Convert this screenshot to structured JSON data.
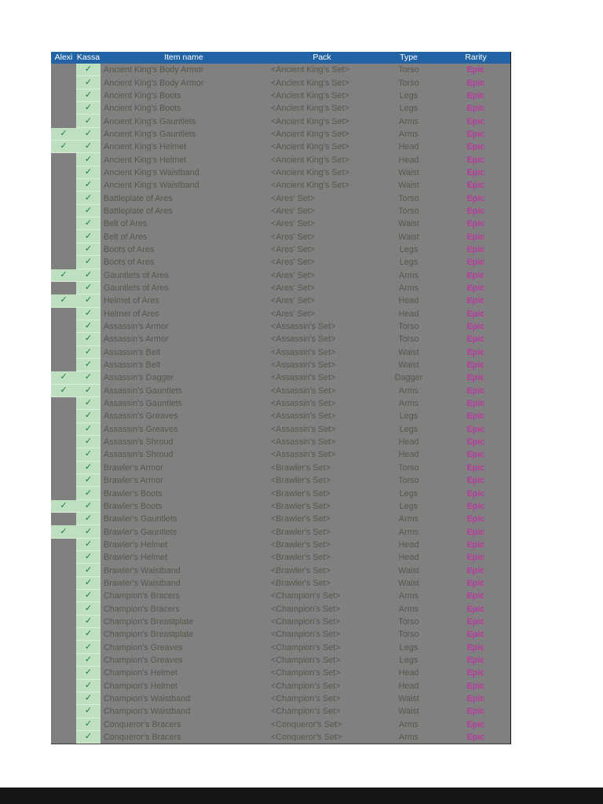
{
  "table": {
    "check_glyph": "✓",
    "colors": {
      "header_bg": "#2163a5",
      "header_text": "#ffffff",
      "row_bg": "#808080",
      "text": "#57564b",
      "check_bg": "#bfe0c0",
      "check_color": "#1e7a34",
      "epic": "#b8399e",
      "bottom_bar": "#161616"
    },
    "header": {
      "columns": [
        "Alexi",
        "Kassa",
        "Item name",
        "Pack",
        "Type",
        "Rarity"
      ]
    },
    "rows": [
      {
        "alexi": false,
        "kassa": true,
        "item": "Ancient King's Body Armor",
        "pack": "<Ancient King's Set>",
        "type": "Torso",
        "rarity": "Epic"
      },
      {
        "alexi": false,
        "kassa": true,
        "item": "Ancient King's Body Armor",
        "pack": "<Ancient King's Set>",
        "type": "Torso",
        "rarity": "Epic"
      },
      {
        "alexi": false,
        "kassa": true,
        "item": "Ancient King's Boots",
        "pack": "<Ancient King's Set>",
        "type": "Legs",
        "rarity": "Epic"
      },
      {
        "alexi": false,
        "kassa": true,
        "item": "Ancient King's Boots",
        "pack": "<Ancient King's Set>",
        "type": "Legs",
        "rarity": "Epic"
      },
      {
        "alexi": false,
        "kassa": true,
        "item": "Ancient King's Gauntlets",
        "pack": "<Ancient King's Set>",
        "type": "Arms",
        "rarity": "Epic"
      },
      {
        "alexi": true,
        "kassa": true,
        "item": "Ancient King's Gauntlets",
        "pack": "<Ancient King's Set>",
        "type": "Arms",
        "rarity": "Epic"
      },
      {
        "alexi": true,
        "kassa": true,
        "item": "Ancient King's Helmet",
        "pack": "<Ancient King's Set>",
        "type": "Head",
        "rarity": "Epic"
      },
      {
        "alexi": false,
        "kassa": true,
        "item": "Ancient King's Helmet",
        "pack": "<Ancient King's Set>",
        "type": "Head",
        "rarity": "Epic"
      },
      {
        "alexi": false,
        "kassa": true,
        "item": "Ancient King's Waistband",
        "pack": "<Ancient King's Set>",
        "type": "Waist",
        "rarity": "Epic"
      },
      {
        "alexi": false,
        "kassa": true,
        "item": "Ancient King's Waistband",
        "pack": "<Ancient King's Set>",
        "type": "Waist",
        "rarity": "Epic"
      },
      {
        "alexi": false,
        "kassa": true,
        "item": "Battleplate of Ares",
        "pack": "<Ares' Set>",
        "type": "Torso",
        "rarity": "Epic"
      },
      {
        "alexi": false,
        "kassa": true,
        "item": "Battleplate of Ares",
        "pack": "<Ares' Set>",
        "type": "Torso",
        "rarity": "Epic"
      },
      {
        "alexi": false,
        "kassa": true,
        "item": "Belt of Ares",
        "pack": "<Ares' Set>",
        "type": "Waist",
        "rarity": "Epic"
      },
      {
        "alexi": false,
        "kassa": true,
        "item": "Belt of Ares",
        "pack": "<Ares' Set>",
        "type": "Waist",
        "rarity": "Epic"
      },
      {
        "alexi": false,
        "kassa": true,
        "item": "Boots of Ares",
        "pack": "<Ares' Set>",
        "type": "Legs",
        "rarity": "Epic"
      },
      {
        "alexi": false,
        "kassa": true,
        "item": "Boots of Ares",
        "pack": "<Ares' Set>",
        "type": "Legs",
        "rarity": "Epic"
      },
      {
        "alexi": true,
        "kassa": true,
        "item": "Gauntlets of Ares",
        "pack": "<Ares' Set>",
        "type": "Arms",
        "rarity": "Epic"
      },
      {
        "alexi": false,
        "kassa": true,
        "item": "Gauntlets of Ares",
        "pack": "<Ares' Set>",
        "type": "Arms",
        "rarity": "Epic"
      },
      {
        "alexi": true,
        "kassa": true,
        "item": "Helmet of Ares",
        "pack": "<Ares' Set>",
        "type": "Head",
        "rarity": "Epic"
      },
      {
        "alexi": false,
        "kassa": true,
        "item": "Helmet of Ares",
        "pack": "<Ares' Set>",
        "type": "Head",
        "rarity": "Epic"
      },
      {
        "alexi": false,
        "kassa": true,
        "item": "Assassin's Armor",
        "pack": "<Assassin's Set>",
        "type": "Torso",
        "rarity": "Epic"
      },
      {
        "alexi": false,
        "kassa": true,
        "item": "Assassin's Armor",
        "pack": "<Assassin's Set>",
        "type": "Torso",
        "rarity": "Epic"
      },
      {
        "alexi": false,
        "kassa": true,
        "item": "Assassin's Belt",
        "pack": "<Assassin's Set>",
        "type": "Waist",
        "rarity": "Epic"
      },
      {
        "alexi": false,
        "kassa": true,
        "item": "Assassin's Belt",
        "pack": "<Assassin's Set>",
        "type": "Waist",
        "rarity": "Epic"
      },
      {
        "alexi": true,
        "kassa": true,
        "item": "Assassin's Dagger",
        "pack": "<Assassin's Set>",
        "type": "Dagger",
        "rarity": "Epic"
      },
      {
        "alexi": true,
        "kassa": true,
        "item": "Assassin's Gauntlets",
        "pack": "<Assassin's Set>",
        "type": "Arms",
        "rarity": "Epic"
      },
      {
        "alexi": false,
        "kassa": true,
        "item": "Assassin's Gauntlets",
        "pack": "<Assassin's Set>",
        "type": "Arms",
        "rarity": "Epic"
      },
      {
        "alexi": false,
        "kassa": true,
        "item": "Assassin's Greaves",
        "pack": "<Assassin's Set>",
        "type": "Legs",
        "rarity": "Epic"
      },
      {
        "alexi": false,
        "kassa": true,
        "item": "Assassin's Greaves",
        "pack": "<Assassin's Set>",
        "type": "Legs",
        "rarity": "Epic"
      },
      {
        "alexi": false,
        "kassa": true,
        "item": "Assassin's Shroud",
        "pack": "<Assassin's Set>",
        "type": "Head",
        "rarity": "Epic"
      },
      {
        "alexi": false,
        "kassa": true,
        "item": "Assassin's Shroud",
        "pack": "<Assassin's Set>",
        "type": "Head",
        "rarity": "Epic"
      },
      {
        "alexi": false,
        "kassa": true,
        "item": "Brawler's Armor",
        "pack": "<Brawler's Set>",
        "type": "Torso",
        "rarity": "Epic"
      },
      {
        "alexi": false,
        "kassa": true,
        "item": "Brawler's Armor",
        "pack": "<Brawler's Set>",
        "type": "Torso",
        "rarity": "Epic"
      },
      {
        "alexi": false,
        "kassa": true,
        "item": "Brawler's Boots",
        "pack": "<Brawler's Set>",
        "type": "Legs",
        "rarity": "Epic"
      },
      {
        "alexi": true,
        "kassa": true,
        "item": "Brawler's Boots",
        "pack": "<Brawler's Set>",
        "type": "Legs",
        "rarity": "Epic"
      },
      {
        "alexi": false,
        "kassa": true,
        "item": "Brawler's Gauntlets",
        "pack": "<Brawler's Set>",
        "type": "Arms",
        "rarity": "Epic"
      },
      {
        "alexi": true,
        "kassa": true,
        "item": "Brawler's Gauntlets",
        "pack": "<Brawler's Set>",
        "type": "Arms",
        "rarity": "Epic"
      },
      {
        "alexi": false,
        "kassa": true,
        "item": "Brawler's Helmet",
        "pack": "<Brawler's Set>",
        "type": "Head",
        "rarity": "Epic"
      },
      {
        "alexi": false,
        "kassa": true,
        "item": "Brawler's Helmet",
        "pack": "<Brawler's Set>",
        "type": "Head",
        "rarity": "Epic"
      },
      {
        "alexi": false,
        "kassa": true,
        "item": "Brawler's Waistband",
        "pack": "<Brawler's Set>",
        "type": "Waist",
        "rarity": "Epic"
      },
      {
        "alexi": false,
        "kassa": true,
        "item": "Brawler's Waistband",
        "pack": "<Brawler's Set>",
        "type": "Waist",
        "rarity": "Epic"
      },
      {
        "alexi": false,
        "kassa": true,
        "item": "Champion's Bracers",
        "pack": "<Champion's Set>",
        "type": "Arms",
        "rarity": "Epic"
      },
      {
        "alexi": false,
        "kassa": true,
        "item": "Champion's Bracers",
        "pack": "<Champion's Set>",
        "type": "Arms",
        "rarity": "Epic"
      },
      {
        "alexi": false,
        "kassa": true,
        "item": "Champion's Breastplate",
        "pack": "<Champion's Set>",
        "type": "Torso",
        "rarity": "Epic"
      },
      {
        "alexi": false,
        "kassa": true,
        "item": "Champion's Breastplate",
        "pack": "<Champion's Set>",
        "type": "Torso",
        "rarity": "Epic"
      },
      {
        "alexi": false,
        "kassa": true,
        "item": "Champion's Greaves",
        "pack": "<Champion's Set>",
        "type": "Legs",
        "rarity": "Epic"
      },
      {
        "alexi": false,
        "kassa": true,
        "item": "Champion's Greaves",
        "pack": "<Champion's Set>",
        "type": "Legs",
        "rarity": "Epic"
      },
      {
        "alexi": false,
        "kassa": true,
        "item": "Champion's Helmet",
        "pack": "<Champion's Set>",
        "type": "Head",
        "rarity": "Epic"
      },
      {
        "alexi": false,
        "kassa": true,
        "item": "Champion's Helmet",
        "pack": "<Champion's Set>",
        "type": "Head",
        "rarity": "Epic"
      },
      {
        "alexi": false,
        "kassa": true,
        "item": "Champion's Waistband",
        "pack": "<Champion's Set>",
        "type": "Waist",
        "rarity": "Epic"
      },
      {
        "alexi": false,
        "kassa": true,
        "item": "Champion's Waistband",
        "pack": "<Champion's Set>",
        "type": "Waist",
        "rarity": "Epic"
      },
      {
        "alexi": false,
        "kassa": true,
        "item": "Conqueror's Bracers",
        "pack": "<Conqueror's Set>",
        "type": "Arms",
        "rarity": "Epic"
      },
      {
        "alexi": false,
        "kassa": true,
        "item": "Conqueror's Bracers",
        "pack": "<Conqueror's Set>",
        "type": "Arms",
        "rarity": "Epic"
      }
    ]
  }
}
